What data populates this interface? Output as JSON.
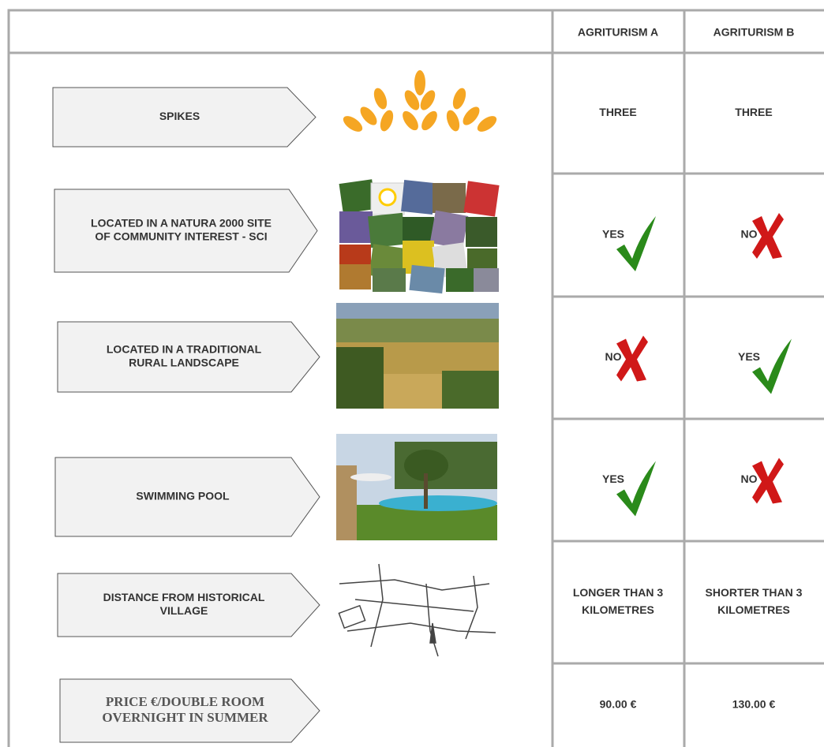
{
  "header": {
    "columns": [
      "AGRITURISM A",
      "AGRITURISM B"
    ]
  },
  "rows": [
    {
      "label": [
        "SPIKES"
      ],
      "a": {
        "text": [
          "THREE"
        ]
      },
      "b": {
        "text": [
          "THREE"
        ]
      }
    },
    {
      "label": [
        "LOCATED IN A NATURA 2000 SITE",
        "OF COMMUNITY INTEREST - SCI"
      ],
      "a": {
        "text": [
          "YES"
        ],
        "icon": "check"
      },
      "b": {
        "text": [
          "NO"
        ],
        "icon": "cross"
      }
    },
    {
      "label": [
        "LOCATED IN A TRADITIONAL",
        "RURAL LANDSCAPE"
      ],
      "a": {
        "text": [
          "NO"
        ],
        "icon": "cross"
      },
      "b": {
        "text": [
          "YES"
        ],
        "icon": "check"
      }
    },
    {
      "label": [
        "SWIMMING POOL"
      ],
      "a": {
        "text": [
          "YES"
        ],
        "icon": "check"
      },
      "b": {
        "text": [
          "NO"
        ],
        "icon": "cross"
      }
    },
    {
      "label": [
        "DISTANCE FROM HISTORICAL",
        "VILLAGE"
      ],
      "a": {
        "text": [
          "LONGER THAN 3",
          "KILOMETRES"
        ]
      },
      "b": {
        "text": [
          "SHORTER THAN 3",
          "KILOMETRES"
        ]
      }
    },
    {
      "label": [
        "PRICE €/DOUBLE ROOM",
        "OVERNIGHT IN SUMMER"
      ],
      "a": {
        "text": [
          "90.00 €"
        ]
      },
      "b": {
        "text": [
          "130.00 €"
        ]
      }
    }
  ]
}
